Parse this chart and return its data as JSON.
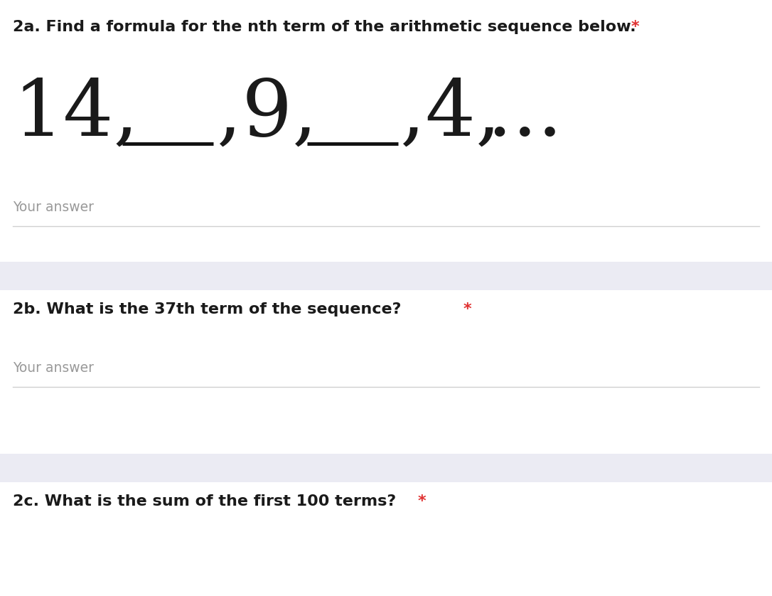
{
  "background_color": "#ffffff",
  "section_divider_color": "#ebebf3",
  "text_color": "#1a1a1a",
  "gray_text_color": "#999999",
  "red_color": "#e03030",
  "line_color": "#d0d0d0",
  "q2a_label": "2a. Find a formula for the nth term of the arithmetic sequence below. ",
  "q2a_star": "*",
  "q2b_label": "2b. What is the 37th term of the sequence? ",
  "q2b_star": "*",
  "q2c_label": "2c. What is the sum of the first 100 terms? ",
  "q2c_star": "*",
  "your_answer": "Your answer",
  "fig_width": 10.86,
  "fig_height": 8.38,
  "dpi": 100,
  "seq_14": "14,",
  "seq_9": ",9,",
  "seq_4": ",4,",
  "seq_dots": " ...",
  "underline_color": "#111111",
  "underline_lw": 3.5
}
